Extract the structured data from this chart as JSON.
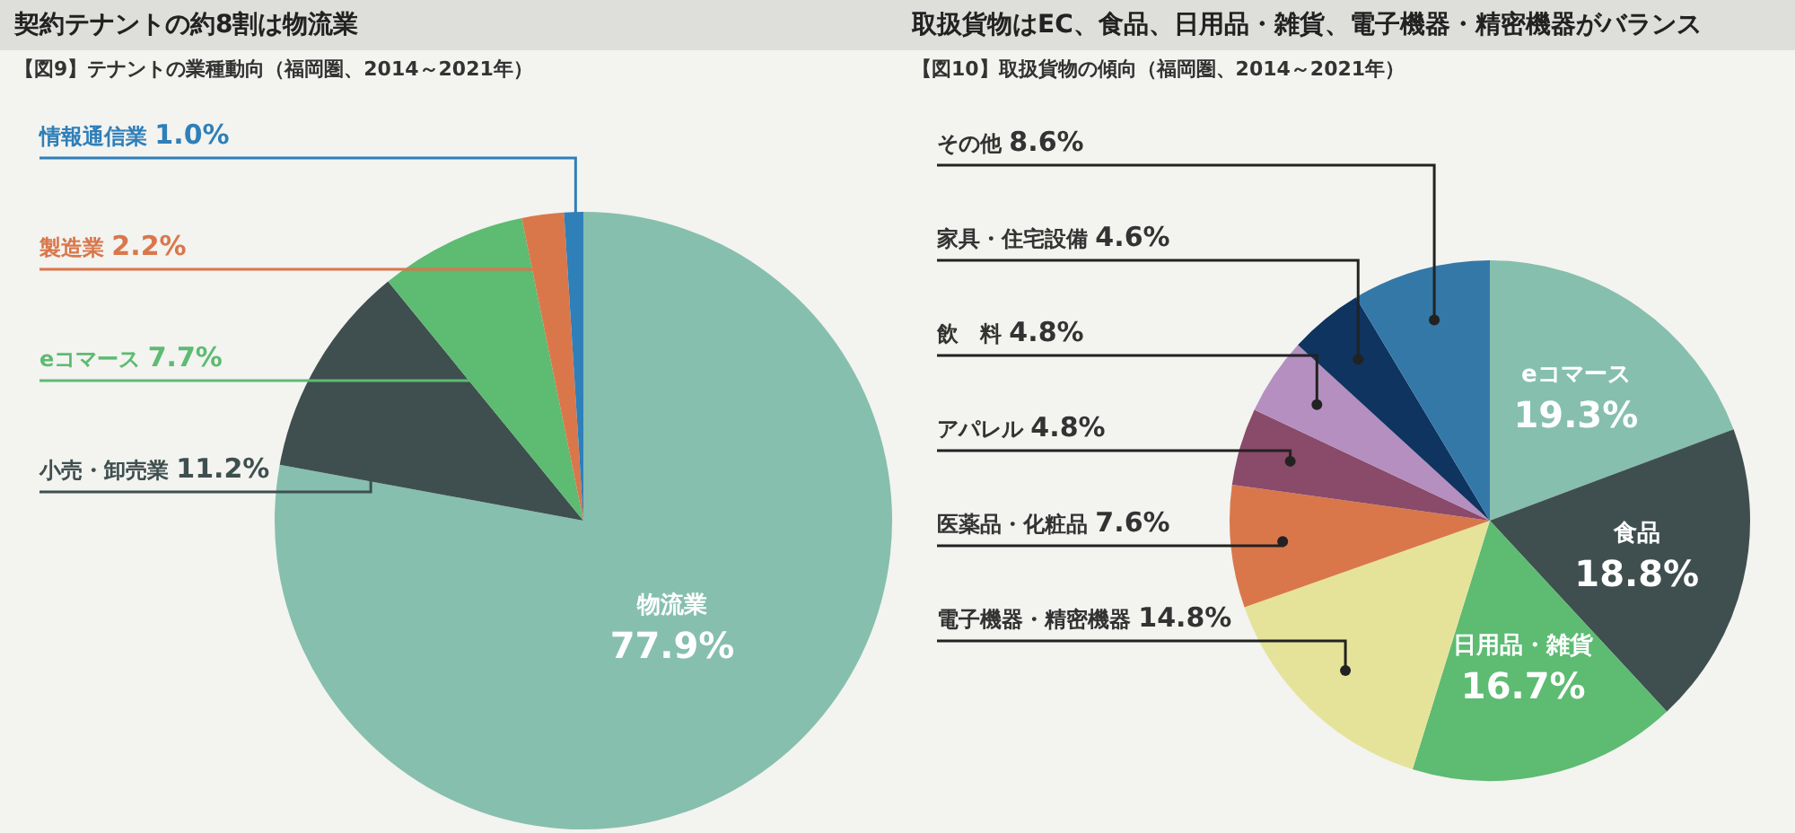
{
  "chart_data": [
    {
      "type": "pie",
      "title": "契約テナントの約8割は物流業",
      "subtitle": "【図9】テナントの業種動向（福岡圏、2014～2021年）",
      "categories": [
        "物流業",
        "小売・卸売業",
        "eコマース",
        "製造業",
        "情報通信業"
      ],
      "values": [
        77.9,
        11.2,
        7.7,
        2.2,
        1.0
      ],
      "colors": [
        "#86bfae",
        "#3f4f4f",
        "#5dbb72",
        "#d9774b",
        "#2f7fb8"
      ],
      "value_labels": [
        "77.9%",
        "11.2%",
        "7.7%",
        "2.2%",
        "1.0%"
      ]
    },
    {
      "type": "pie",
      "title": "取扱貨物はEC、食品、日用品・雑貨、電子機器・精密機器がバランス",
      "subtitle": "【図10】取扱貨物の傾向（福岡圏、2014～2021年）",
      "categories": [
        "eコマース",
        "食品",
        "日用品・雑貨",
        "電子機器・精密機器",
        "医薬品・化粧品",
        "アパレル",
        "飲　料",
        "家具・住宅設備",
        "その他"
      ],
      "values": [
        19.3,
        18.8,
        16.7,
        14.8,
        7.6,
        4.8,
        4.8,
        4.6,
        8.6
      ],
      "colors": [
        "#86bfae",
        "#3f4f4f",
        "#5dbb72",
        "#e5e39a",
        "#d9774b",
        "#8a4a6a",
        "#b48fc0",
        "#0f3460",
        "#3478a8"
      ],
      "value_labels": [
        "19.3%",
        "18.8%",
        "16.7%",
        "14.8%",
        "7.6%",
        "4.8%",
        "4.8%",
        "4.6%",
        "8.6%"
      ]
    }
  ]
}
